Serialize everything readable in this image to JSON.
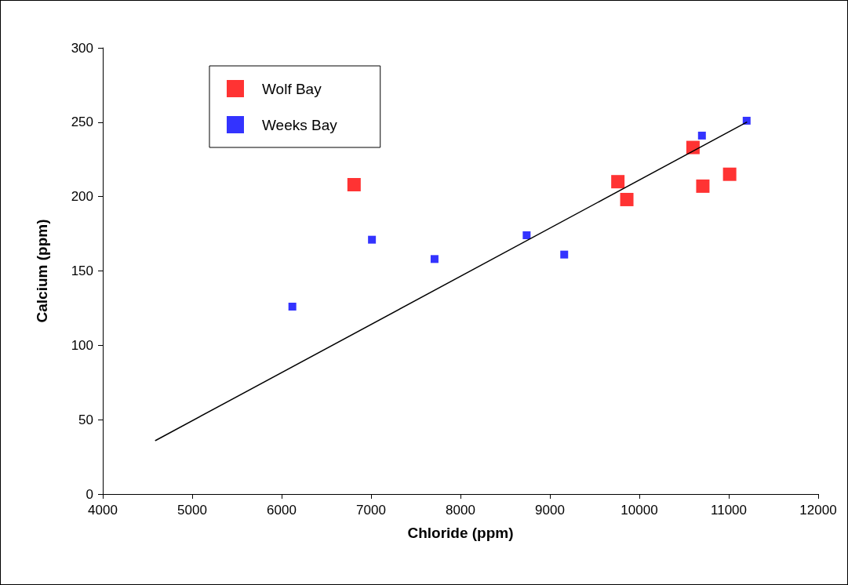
{
  "chart_data": {
    "type": "scatter",
    "xlabel": "Chloride (ppm)",
    "ylabel": "Calcium (ppm)",
    "xlim": [
      4000,
      12000
    ],
    "xticks": [
      4000,
      5000,
      6000,
      7000,
      8000,
      9000,
      10000,
      11000,
      12000
    ],
    "ylim": [
      0,
      300
    ],
    "yticks": [
      0,
      50,
      100,
      150,
      200,
      250,
      300
    ],
    "grid": false,
    "legend": "top left",
    "marker": "square",
    "series": [
      {
        "name": "Wolf Bay",
        "color": "#ff0000",
        "x": [
          6810,
          9760,
          9860,
          10600,
          10710,
          11010
        ],
        "values": [
          208,
          210,
          198,
          233,
          207,
          215
        ]
      },
      {
        "name": "Weeks Bay",
        "color": "#0000ff",
        "x": [
          6120,
          7010,
          7710,
          8740,
          9160,
          10700,
          11200
        ],
        "values": [
          126,
          171,
          158,
          174,
          161,
          241,
          251
        ]
      },
      {
        "type": "line",
        "color": "#000000",
        "marker": "none",
        "line_style": "solid",
        "x": [
          4590,
          11200
        ],
        "values": [
          36,
          250
        ]
      }
    ]
  }
}
